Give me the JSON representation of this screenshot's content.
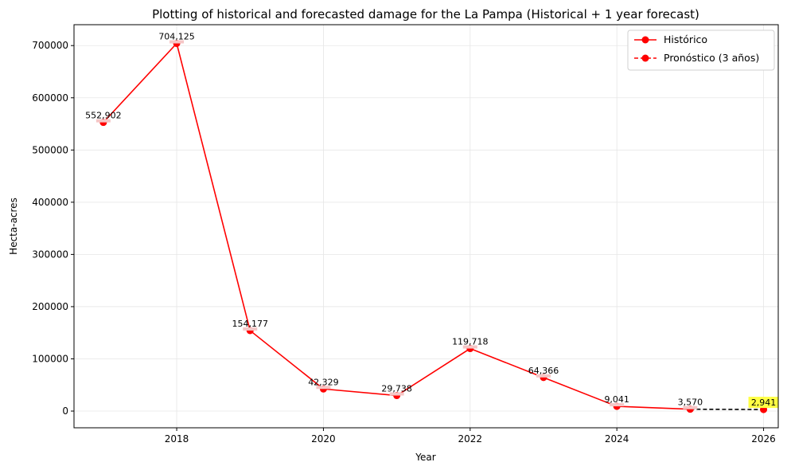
{
  "chart_data": {
    "type": "line",
    "title": "Plotting of historical and forecasted damage for the La Pampa (Historical + 1 year forecast)",
    "xlabel": "Year",
    "ylabel": "Hecta-acres",
    "xlim": [
      2016.6,
      2026.2
    ],
    "ylim": [
      -32000,
      740000
    ],
    "xticks": [
      2018,
      2020,
      2022,
      2024,
      2026
    ],
    "yticks": [
      0,
      100000,
      200000,
      300000,
      400000,
      500000,
      600000,
      700000
    ],
    "grid": true,
    "legend_position": "top-right",
    "series": [
      {
        "name": "Histórico",
        "style": "solid",
        "color": "#ff0000",
        "x": [
          2017,
          2018,
          2019,
          2020,
          2021,
          2022,
          2023,
          2024,
          2025
        ],
        "y": [
          552902,
          704125,
          154177,
          42329,
          29738,
          119718,
          64366,
          9041,
          3570
        ],
        "labels": [
          "552,902",
          "704,125",
          "154,177",
          "42,329",
          "29,738",
          "119,718",
          "64,366",
          "9,041",
          "3,570"
        ]
      },
      {
        "name": "Pronóstico (3 años)",
        "style": "dashed",
        "color": "#ff0000",
        "line_color": "#000000",
        "x": [
          2025,
          2026
        ],
        "y": [
          3570,
          2941
        ],
        "labels": [
          "2,941"
        ],
        "label_highlight": "#ffff44"
      }
    ]
  }
}
